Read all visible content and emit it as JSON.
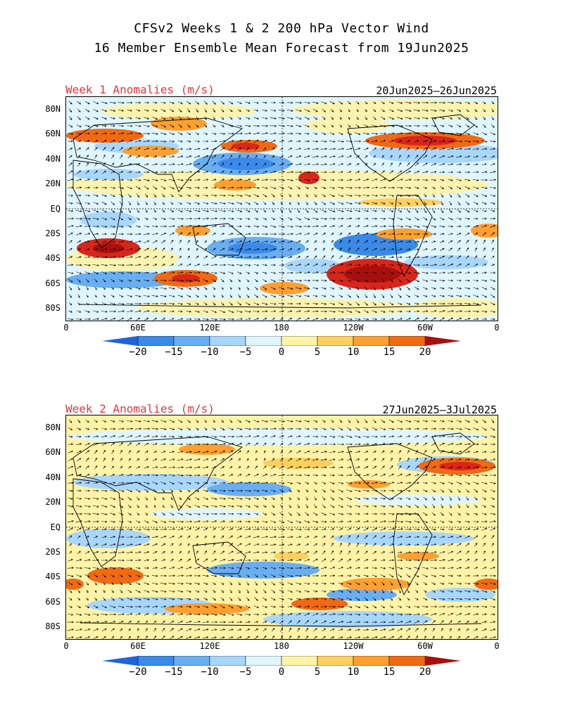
{
  "header": {
    "title_line1": "CFSv2 Weeks 1 & 2 200 hPa Vector Wind",
    "title_line2": "16 Member Ensemble Mean Forecast from 19Jun2025"
  },
  "panels": [
    {
      "label": "Week 1 Anomalies (m/s)",
      "date_range": "20Jun2025–26Jun2025",
      "lat_labels": [
        "80N",
        "60N",
        "40N",
        "20N",
        "EQ",
        "20S",
        "40S",
        "60S",
        "80S"
      ],
      "lon_labels": [
        "0",
        "60E",
        "120E",
        "180",
        "120W",
        "60W",
        "0"
      ]
    },
    {
      "label": "Week 2 Anomalies (m/s)",
      "date_range": "27Jun2025–3Jul2025",
      "lat_labels": [
        "80N",
        "60N",
        "40N",
        "20N",
        "EQ",
        "20S",
        "40S",
        "60S",
        "80S"
      ],
      "lon_labels": [
        "0",
        "60E",
        "120E",
        "180",
        "120W",
        "60W",
        "0"
      ]
    }
  ],
  "colorbar": {
    "ticks": [
      "−20",
      "−15",
      "−10",
      "−5",
      "0",
      "5",
      "10",
      "15",
      "20"
    ],
    "colors": [
      "#1f64d8",
      "#3b8ae8",
      "#6aaef2",
      "#a9d6fb",
      "#dff6ff",
      "#fff3a8",
      "#ffd060",
      "#fca032",
      "#f06a14",
      "#d8261a",
      "#a8100e"
    ]
  }
}
